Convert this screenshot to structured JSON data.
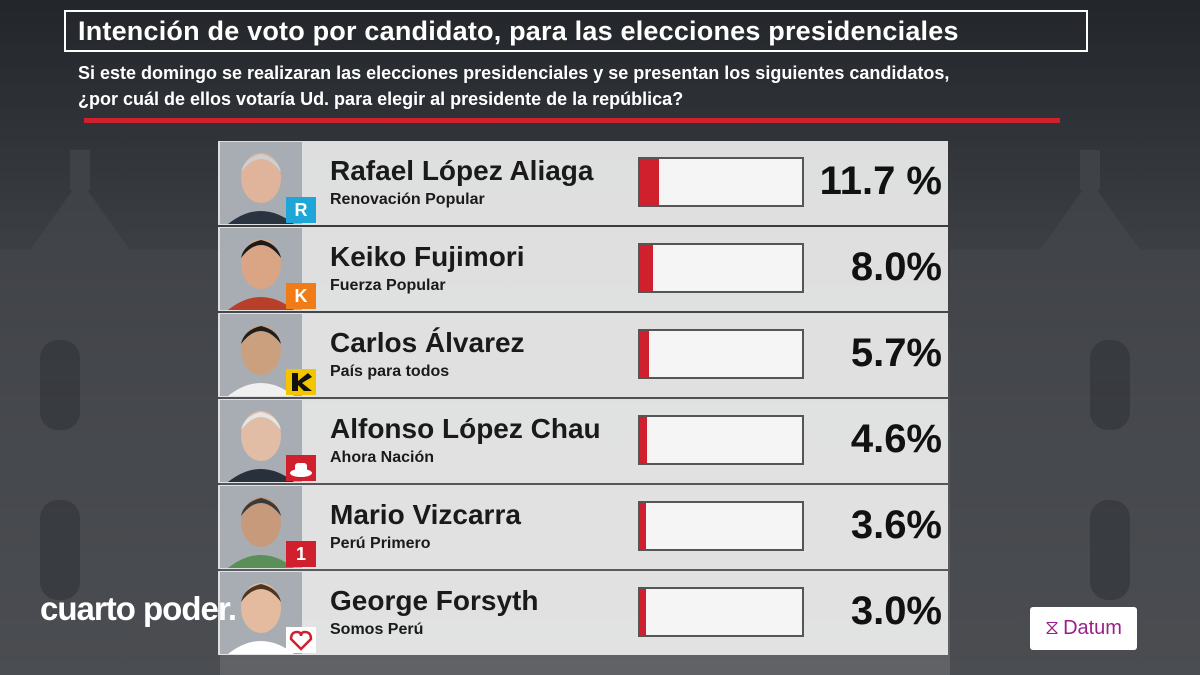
{
  "title": "Intención de voto por candidato, para las elecciones presidenciales",
  "subtitle_line1": "Si este domingo se realizaran las elecciones presidenciales y se presentan los siguientes candidatos,",
  "subtitle_line2": "¿por cuál de ellos votaría Ud. para elegir al presidente de la república?",
  "colors": {
    "accent": "#d0202e",
    "row_bg": "#ececec",
    "text": "#1a1a1a"
  },
  "brands": {
    "left": "cuarto poder.",
    "right": "Datum"
  },
  "chart_data": {
    "type": "bar",
    "orientation": "horizontal",
    "title": "Intención de voto por candidato, para las elecciones presidenciales",
    "categories": [
      "Rafael López Aliaga",
      "Keiko Fujimori",
      "Carlos Álvarez",
      "Alfonso López Chau",
      "Mario Vizcarra",
      "George Forsyth"
    ],
    "parties": [
      "Renovación Popular",
      "Fuerza Popular",
      "País para todos",
      "Ahora Nación",
      "Perú Primero",
      "Somos Perú"
    ],
    "values": [
      11.7,
      8.0,
      5.7,
      4.6,
      3.6,
      3.0
    ],
    "labels": [
      "11.7 %",
      "8.0%",
      "5.7%",
      "4.6%",
      "3.6%",
      "3.0%"
    ],
    "unit": "%",
    "xlim": [
      0,
      100
    ],
    "logos": [
      {
        "icon": "R",
        "color": "#1ea6d8"
      },
      {
        "icon": "K",
        "color": "#f07c17"
      },
      {
        "icon": "chevron-logo-icon",
        "color": "#f2c500"
      },
      {
        "icon": "hat-logo-icon",
        "color": "#d0202e"
      },
      {
        "icon": "1",
        "color": "#d0202e"
      },
      {
        "icon": "heart-logo-icon",
        "color": "#d0202e"
      }
    ]
  }
}
